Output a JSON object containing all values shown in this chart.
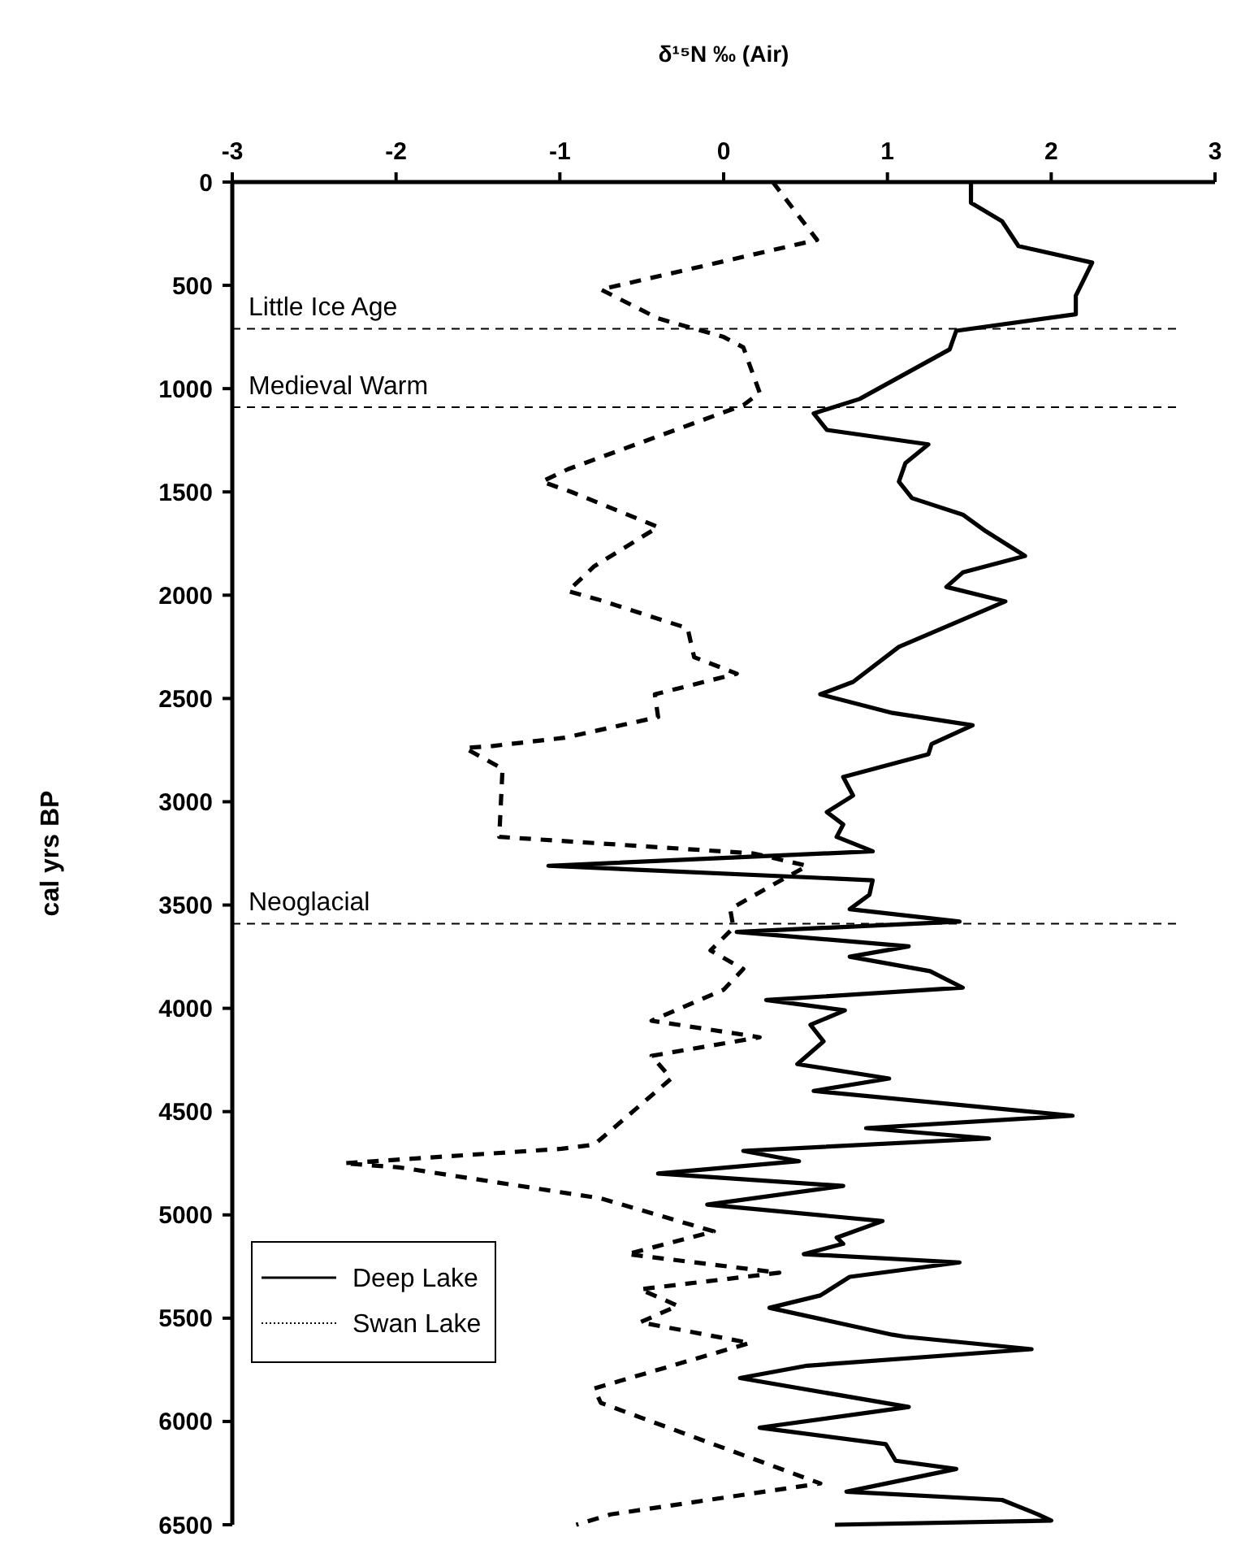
{
  "chart_data": {
    "type": "line",
    "xlabel": "δ¹⁵N ‰ (Air)",
    "ylabel": "cal yrs BP",
    "xlim": [
      -3,
      3
    ],
    "xticks": [
      -3,
      -2,
      -1,
      0,
      1,
      2,
      3
    ],
    "ylim": [
      6500,
      0
    ],
    "yticks": [
      0,
      500,
      1000,
      1500,
      2000,
      2500,
      3000,
      3500,
      4000,
      4500,
      5000,
      5500,
      6000,
      6500
    ],
    "grid": false,
    "legend": "bottom left",
    "marker": "none",
    "ref_lines": [
      {
        "axis": "y",
        "value": 710,
        "label": "Little Ice Age",
        "line_style": "dashed",
        "color": "#000000"
      },
      {
        "axis": "y",
        "value": 1090,
        "label": "Medieval Warm",
        "line_style": "dashed",
        "color": "#000000"
      },
      {
        "axis": "y",
        "value": 3590,
        "label": "Neoglacial",
        "line_style": "dashed",
        "color": "#000000"
      }
    ],
    "series": [
      {
        "name": "Deep Lake",
        "color": "#000000",
        "line_style": "solid",
        "x": [
          1.51,
          1.51,
          1.7,
          1.8,
          2.25,
          2.15,
          2.15,
          1.42,
          1.38,
          0.83,
          0.55,
          0.63,
          1.25,
          1.11,
          1.07,
          1.15,
          1.46,
          1.6,
          1.84,
          1.46,
          1.36,
          1.72,
          1.07,
          0.79,
          0.59,
          1.03,
          1.52,
          1.27,
          1.25,
          0.73,
          0.79,
          0.63,
          0.73,
          0.69,
          0.91,
          -1.07,
          0.91,
          0.89,
          0.77,
          1.44,
          0.08,
          1.13,
          0.77,
          1.26,
          1.46,
          0.26,
          0.74,
          0.53,
          0.61,
          0.45,
          1.01,
          0.55,
          2.13,
          0.87,
          1.62,
          0.12,
          0.46,
          -0.4,
          0.73,
          -0.1,
          0.97,
          0.69,
          0.73,
          0.49,
          1.44,
          0.77,
          0.59,
          0.28,
          0.57,
          1.03,
          1.11,
          1.88,
          0.51,
          0.1,
          1.13,
          0.22,
          0.99,
          1.05,
          1.42,
          0.75,
          1.7,
          1.92,
          2.0,
          0.68
        ],
        "values": [
          0,
          100,
          190,
          310,
          390,
          550,
          640,
          720,
          810,
          1050,
          1120,
          1200,
          1270,
          1360,
          1450,
          1530,
          1610,
          1690,
          1810,
          1890,
          1960,
          2030,
          2250,
          2420,
          2480,
          2570,
          2630,
          2720,
          2770,
          2880,
          2970,
          3050,
          3110,
          3170,
          3240,
          3310,
          3380,
          3450,
          3520,
          3580,
          3630,
          3700,
          3750,
          3820,
          3900,
          3960,
          4010,
          4080,
          4160,
          4270,
          4340,
          4400,
          4520,
          4580,
          4630,
          4690,
          4740,
          4800,
          4860,
          4950,
          5030,
          5110,
          5140,
          5190,
          5230,
          5300,
          5390,
          5450,
          5500,
          5580,
          5590,
          5650,
          5730,
          5790,
          5930,
          6030,
          6110,
          6190,
          6230,
          6340,
          6380,
          6450,
          6480,
          6500
        ]
      },
      {
        "name": "Swan Lake",
        "color": "#000000",
        "line_style": "dashed",
        "x": [
          0.3,
          0.57,
          -0.75,
          -0.4,
          0.0,
          0.12,
          0.22,
          0.12,
          -0.95,
          -1.11,
          -0.93,
          -0.4,
          -0.79,
          -0.95,
          -0.77,
          -0.22,
          -0.18,
          0.08,
          -0.42,
          -0.4,
          -0.97,
          -1.41,
          -1.58,
          -1.35,
          -1.37,
          0.18,
          0.51,
          0.26,
          0.04,
          0.06,
          -0.08,
          0.12,
          0.0,
          -0.44,
          0.22,
          -0.44,
          -0.32,
          -0.79,
          -0.99,
          -2.32,
          -1.98,
          -0.75,
          -0.06,
          -0.59,
          0.34,
          -0.51,
          -0.28,
          -0.51,
          0.16,
          -0.79,
          -0.75,
          0.59,
          -0.69,
          -0.9
        ],
        "values": [
          0,
          280,
          520,
          660,
          750,
          800,
          1020,
          1080,
          1390,
          1450,
          1500,
          1670,
          1860,
          1980,
          2020,
          2160,
          2300,
          2380,
          2480,
          2590,
          2690,
          2730,
          2740,
          2840,
          3170,
          3250,
          3310,
          3420,
          3520,
          3610,
          3720,
          3810,
          3910,
          4060,
          4140,
          4230,
          4340,
          4660,
          4680,
          4750,
          4770,
          4920,
          5080,
          5190,
          5280,
          5360,
          5440,
          5520,
          5620,
          5840,
          5910,
          6300,
          6450,
          6500
        ]
      }
    ]
  }
}
